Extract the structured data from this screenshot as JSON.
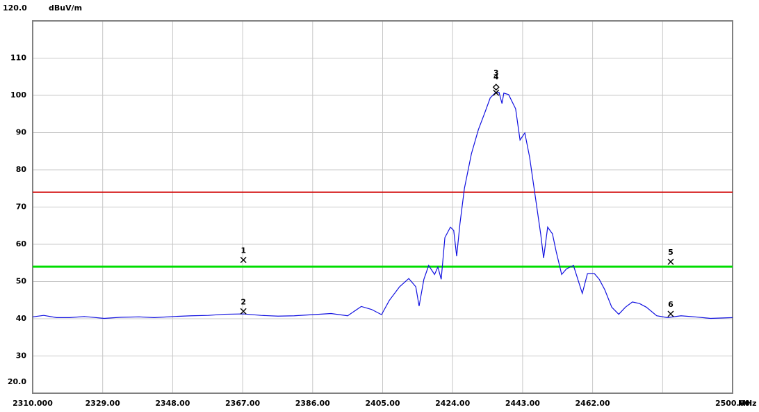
{
  "chart_data": {
    "type": "line",
    "y_unit": "dBuV/m",
    "x_unit": "MHz",
    "xlim": [
      2310,
      2500
    ],
    "ylim": [
      20,
      120
    ],
    "xticks": [
      {
        "value": 2310,
        "label": "2310.000"
      },
      {
        "value": 2329,
        "label": "2329.00"
      },
      {
        "value": 2348,
        "label": "2348.00"
      },
      {
        "value": 2367,
        "label": "2367.00"
      },
      {
        "value": 2386,
        "label": "2386.00"
      },
      {
        "value": 2405,
        "label": "2405.00"
      },
      {
        "value": 2424,
        "label": "2424.00"
      },
      {
        "value": 2443,
        "label": "2443.00"
      },
      {
        "value": 2462,
        "label": "2462.00"
      },
      {
        "value": 2481,
        "label": null
      },
      {
        "value": 2500,
        "label": "2500.00"
      }
    ],
    "yticks": [
      {
        "value": 20,
        "label": "20.0"
      },
      30,
      40,
      50,
      60,
      70,
      80,
      90,
      100,
      110,
      {
        "value": 120,
        "label": "120.0"
      }
    ],
    "grid": true,
    "limit_lines": [
      {
        "value": 74,
        "color": "#d00000"
      },
      {
        "value": 54,
        "color": "#00dd00"
      }
    ],
    "series": [
      {
        "color": "#1010e0",
        "x": [
          2310.0,
          2313.0,
          2316.5,
          2320.0,
          2324.0,
          2329.4,
          2334.0,
          2338.9,
          2343.0,
          2348.3,
          2353.0,
          2357.7,
          2362.0,
          2367.2,
          2372.0,
          2376.6,
          2381.0,
          2386.0,
          2391.0,
          2395.5,
          2399.2,
          2402.0,
          2404.7,
          2406.8,
          2409.6,
          2412.1,
          2414.0,
          2414.9,
          2416.2,
          2417.5,
          2419.1,
          2420.0,
          2420.9,
          2421.9,
          2423.4,
          2424.3,
          2425.1,
          2426.0,
          2427.2,
          2429.1,
          2431.0,
          2432.8,
          2434.2,
          2435.5,
          2436.6,
          2437.4,
          2437.9,
          2439.2,
          2441.1,
          2442.3,
          2443.6,
          2444.9,
          2446.4,
          2447.9,
          2448.7,
          2449.8,
          2451.1,
          2452.1,
          2453.6,
          2454.9,
          2456.8,
          2457.7,
          2459.2,
          2460.6,
          2462.5,
          2463.8,
          2465.3,
          2467.2,
          2469.1,
          2470.9,
          2472.8,
          2474.7,
          2476.6,
          2479.4,
          2482.3,
          2486.0,
          2489.8,
          2494.0,
          2500.0
        ],
        "values": [
          40.5,
          40.9,
          40.3,
          40.3,
          40.6,
          40.1,
          40.4,
          40.5,
          40.3,
          40.6,
          40.8,
          40.9,
          41.2,
          41.3,
          40.9,
          40.7,
          40.8,
          41.1,
          41.4,
          40.8,
          43.3,
          42.5,
          41.1,
          44.9,
          48.6,
          50.8,
          48.6,
          43.4,
          50.6,
          54.3,
          51.9,
          53.9,
          50.6,
          61.8,
          64.6,
          63.7,
          56.8,
          65.6,
          75.0,
          84.3,
          90.8,
          95.5,
          99.3,
          100.6,
          100.8,
          97.8,
          100.6,
          100.2,
          96.4,
          88.0,
          89.9,
          83.4,
          73.1,
          62.8,
          56.3,
          64.6,
          62.8,
          58.1,
          51.9,
          53.4,
          54.3,
          51.5,
          46.8,
          52.1,
          52.1,
          50.6,
          47.8,
          43.1,
          41.2,
          43.1,
          44.5,
          44.1,
          43.1,
          40.8,
          40.3,
          40.8,
          40.5,
          40.1,
          40.3
        ]
      }
    ],
    "markers": [
      {
        "label": "1",
        "x": 2367.2,
        "y": 55.8,
        "symbol": "x"
      },
      {
        "label": "2",
        "x": 2367.2,
        "y": 42.0,
        "symbol": "x"
      },
      {
        "label": "3",
        "x": 2435.8,
        "y": 100.7,
        "symbol": "x"
      },
      {
        "label": "4",
        "x": 2435.8,
        "y": 102.2,
        "symbol": "diamond"
      },
      {
        "label": "5",
        "x": 2483.2,
        "y": 55.3,
        "symbol": "x"
      },
      {
        "label": "6",
        "x": 2483.2,
        "y": 41.3,
        "symbol": "x"
      }
    ]
  }
}
